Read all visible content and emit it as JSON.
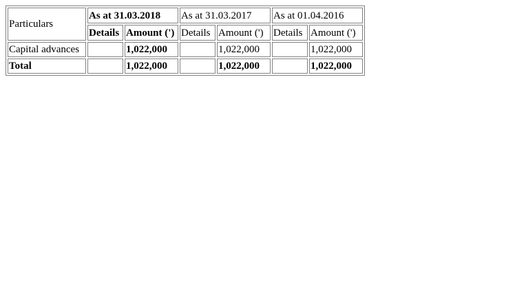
{
  "table": {
    "header": {
      "particulars": "Particulars",
      "periods": [
        {
          "label": "As at 31.03.2018",
          "bold": true
        },
        {
          "label": "As at 31.03.2017",
          "bold": false
        },
        {
          "label": "As at 01.04.2016",
          "bold": false
        }
      ],
      "sub_columns": {
        "p2018": {
          "details": "Details",
          "amount": "Amount (')"
        },
        "p2017": {
          "details": "Details",
          "amount": "Amount (')"
        },
        "p2016": {
          "details": "Details",
          "amount": "Amount (')"
        }
      }
    },
    "rows": [
      {
        "label": "Capital advances",
        "p2018": {
          "details": "",
          "amount": "1,022,000"
        },
        "p2017": {
          "details": "",
          "amount": "1,022,000"
        },
        "p2016": {
          "details": "",
          "amount": "1,022,000"
        }
      },
      {
        "label": "Total",
        "p2018": {
          "details": "",
          "amount": "1,022,000"
        },
        "p2017": {
          "details": "",
          "amount": "1,022,000"
        },
        "p2016": {
          "details": "",
          "amount": "1,022,000"
        }
      }
    ]
  }
}
